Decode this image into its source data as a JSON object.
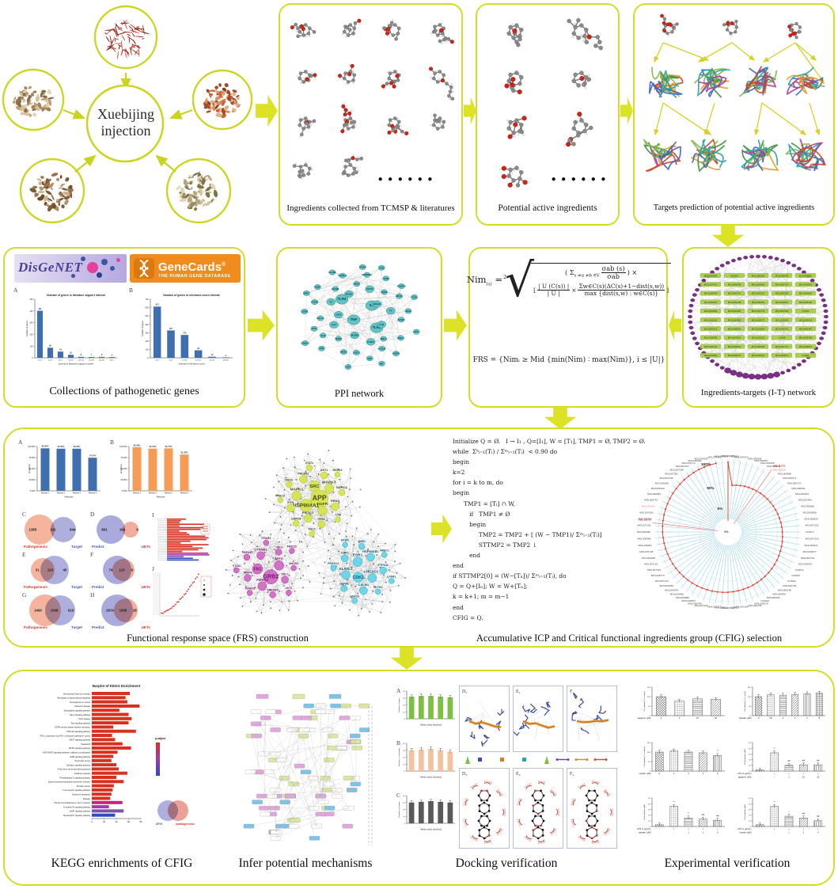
{
  "herbs": {
    "center_label_1": "Xuebijing",
    "center_label_2": "injection"
  },
  "ellipsis": "● ● ● ● ● ●",
  "captions": {
    "ingredients": "Ingredients collected from TCMSP & literatures",
    "active": "Potential active ingredients",
    "targets": "Targets prediction of potential active ingredients",
    "genes": "Collections of pathogenetic genes",
    "ppi": "PPI network",
    "it": "Ingredients-targets (I-T) network",
    "frs": "Functional response space (FRS) construction",
    "cfig": "Accumulative ICP and Critical functional ingredients group (CFIG) selection",
    "kegg": "KEGG enrichments of CFIG",
    "mech": "Infer potential mechanisms",
    "dock": "Docking verification",
    "exp": "Experimental verification"
  },
  "logos": {
    "disgenet": "DisGeNET",
    "genecards": "GeneCards",
    "genecards_reg": "®",
    "genecards_sub": "THE HUMAN GENE DATABASE"
  },
  "formula": {
    "nim": "Nim",
    "nim_sub": "(s)",
    "eq": " =",
    "root_index": "2",
    "sum_open": "( Σ",
    "sum_sub": "s ≠a ≠b ∈V",
    "f1n": "σab (s)",
    "f1d": "σab",
    "close_times": ") ×",
    "lb": "[",
    "f2n": "| U (C(s)) |",
    "f2d": "| U |",
    "times": "×",
    "f3n": "Σw∈C(s)(ΔC(s)+1−dist(s,w))",
    "f3d": "max {dist(s,w) : w∈C(s)}",
    "rb": "]",
    "frs_line": "FRS = {Nimᵢ ≥ Mid {min(Nim) ∶ max(Nim)}, i ≤ |U|}"
  },
  "algorithm": {
    "lines": [
      "Initialize Q = Ø.   I → I₁ , Q=[I₁], W = [T₁], TMP1 = Ø, TMP2 = Ø.",
      "while  Σᵏᵢ₌₁(Tᵢ) / Σᵐᵢ₌₁(Tᵢ)  < 0.90 do",
      "begin",
      "k=2",
      "for i = k to m, do",
      "begin",
      "      TMP1 = [Tᵢ] ∩ W,",
      "         if   TMP1 ≠ Ø",
      "         begin",
      "              TMP2 = TMP2 + [ (W − TMP1)/ Σᵐᵢ₌₁(Tᵢ)]",
      "              STTMP2 = TMP2 ↓",
      "         end",
      "end",
      "if STTMP2[0] = (W−[Tₙ])/ Σᵐᵢ₌₁(Tᵢ), do",
      "Q = Q+[Iₙ]; W = W+[Tₙ];",
      "k = k+1; m = m−1",
      "end",
      "CFIG = Q."
    ]
  },
  "frs_panel_letters": [
    "A",
    "B",
    "C",
    "D",
    "E",
    "F",
    "G",
    "H",
    "I",
    "J"
  ],
  "venn_data": [
    {
      "letter": "C",
      "left": "1365",
      "overlap": "241",
      "right": "844",
      "left_label": "Pathogenesis",
      "right_label": "Target"
    },
    {
      "letter": "D",
      "left": "891",
      "overlap": "164",
      "right": "9",
      "left_label": "Predict",
      "right_label": "UETs"
    },
    {
      "letter": "E",
      "left": "31",
      "overlap": "120",
      "right": "45",
      "left_label": "Pathogenesis",
      "right_label": "Target"
    },
    {
      "letter": "F",
      "left": "74",
      "overlap": "115",
      "right": "8",
      "left_label": "Predict",
      "right_label": "UETs"
    },
    {
      "letter": "G",
      "left": "1460",
      "overlap": "1098",
      "right": "619",
      "left_label": "Pathogenesis",
      "right_label": "Target"
    },
    {
      "letter": "H",
      "left": "2974",
      "overlap": "1058",
      "right": "28",
      "left_label": "Predict",
      "right_label": "UETs"
    }
  ],
  "chart_data": {
    "literature_interval": {
      "type": "bar",
      "panel": "A",
      "title": "Number of genes in literature support interval",
      "ylabel": "Number of genes",
      "xlabel": "Interval of literature support number",
      "categories": [
        "[1,2)",
        "[2,3)",
        "[3,5)",
        "[5,10)",
        "[10,15)",
        "[15,20)",
        "[20,40)",
        "[40,)"
      ],
      "values": [
        402,
        86,
        53,
        26,
        8,
        7,
        8,
        6
      ],
      "ylim": [
        0,
        500
      ],
      "color": "#3f6fae"
    },
    "relevance_interval": {
      "type": "bar",
      "panel": "B",
      "title": "Number of genes in relevance score interval",
      "ylabel": "Number of genes",
      "xlabel": "Interval of relevance score",
      "categories": [
        "[2,5)",
        "[5,7)",
        "[7,10)",
        "[10,15)",
        "[15,20)",
        "[20,30)"
      ],
      "values": [
        612,
        327,
        273,
        90,
        13,
        6
      ],
      "ylim": [
        0,
        700
      ],
      "color": "#3f6fae"
    },
    "method_proportion_a": {
      "type": "bar",
      "panel": "A",
      "ylabel": "proportion",
      "xlabel": "Methods",
      "categories": [
        "Method 1",
        "Method 2",
        "Method 3",
        "Method 4"
      ],
      "values": [
        95.82,
        95,
        95,
        74.67
      ],
      "labels": [
        "95.82%",
        "95.00%",
        "95.00%",
        "74.67%"
      ],
      "yticks": [
        "0.00%",
        "25.00%",
        "50.00%",
        "75.00%",
        "100.00%"
      ],
      "ylim": [
        0,
        100
      ],
      "color": "#3f6fae"
    },
    "method_proportion_b": {
      "type": "bar",
      "panel": "B",
      "ylabel": "proportion",
      "xlabel": "Methods",
      "categories": [
        "Method 1",
        "Method 2",
        "Method 3",
        "Method 4"
      ],
      "values": [
        98.39,
        95.12,
        95.77,
        81.92
      ],
      "labels": [
        "98.39%",
        "95.12%",
        "95.77%",
        "81.92%"
      ],
      "yticks": [
        "0.00%",
        "25.00%",
        "50.00%",
        "75.00%",
        "100.00%"
      ],
      "ylim": [
        0,
        100
      ],
      "color": "#f59d56"
    },
    "kegg_enrichment": {
      "type": "bar-horizontal",
      "title": "Barplot of KEGG Enrichment",
      "legend_title": "p.adjust",
      "xticks": [
        0,
        20,
        40,
        60,
        80
      ],
      "pathways": [
        "Non-alcoholic fatty liver disease",
        "Retrograde endocannabinoid signaling",
        "Proteoglycans in cancer",
        "Alzheimer disease",
        "Sphingolipid signaling pathway",
        "Rap1 signaling pathway",
        "Prion disease",
        "Ras signaling pathway",
        "EGFR tyrosine kinase inhibitor resistance",
        "PI3K-Akt signaling pathway",
        "PD-L1 expression and PD-1 checkpoint pathway in cancer",
        "VEGF signaling pathway",
        "Hepatitis B",
        "MAPK signaling pathway",
        "AGE-RAGE signaling pathway in diabetic complications",
        "ErbB signaling pathway",
        "Pancreatic cancer",
        "Estrogen signaling pathway",
        "Fluid shear stress and atherosclerosis",
        "Parkinson disease",
        "Phospholipase D signaling pathway",
        "Kaposi sarcoma-associated herpesvirus infection",
        "Prostate cancer",
        "T cell receptor signaling pathway",
        "Endocrine resistance",
        "Measles",
        "Human immunodeficiency virus 1 infection",
        "Fc epsilon RI signaling pathway",
        "cAMP signaling pathway",
        "Neurotrophin signaling pathway"
      ],
      "values": [
        62,
        55,
        58,
        78,
        45,
        60,
        65,
        60,
        35,
        72,
        33,
        38,
        50,
        64,
        42,
        35,
        32,
        40,
        44,
        58,
        40,
        52,
        36,
        34,
        32,
        30,
        50,
        28,
        52,
        38
      ],
      "colors": [
        "#d7301f",
        "#d7301f",
        "#d7301f",
        "#d7301f",
        "#d7301f",
        "#d7301f",
        "#d7301f",
        "#d7301f",
        "#d7301f",
        "#d7301f",
        "#d7301f",
        "#d7301f",
        "#d7301f",
        "#d7301f",
        "#d7301f",
        "#d7301f",
        "#d7301f",
        "#d7301f",
        "#d7301f",
        "#d7301f",
        "#d7301f",
        "#d7301f",
        "#d7301f",
        "#d7301f",
        "#d7301f",
        "#d7301f",
        "#c0267e",
        "#a03ab0",
        "#7b52ab",
        "#2f4bc0"
      ],
      "venn_labels": [
        "CFIG",
        "pathogenesis"
      ]
    },
    "docking_counts": [
      {
        "panel": "A",
        "ylabel": "Numbers of genes",
        "xlabel": "Affinity values (kcal/mol)",
        "values": [
          32,
          33,
          33,
          32,
          31
        ],
        "color": "#7cc043"
      },
      {
        "panel": "B",
        "ylabel": "Numbers of compounds",
        "xlabel": "Affinity values (kcal/mol)",
        "values": [
          30,
          31,
          32,
          30,
          28
        ],
        "color": "#f5c29e"
      },
      {
        "panel": "C",
        "ylabel": "Numbers of proteins",
        "xlabel": "Affinity values (kcal/mol)",
        "values": [
          30,
          31,
          32,
          31,
          30
        ],
        "color": "#5a5a5a"
      }
    ],
    "experimental": [
      {
        "ylabel": "Cell viability (% of control)",
        "xrows": [
          {
            "label": "apigenin (μM)",
            "values": [
              "0",
              "1",
              "10",
              "20"
            ]
          }
        ],
        "values": [
          100,
          76,
          88,
          85
        ],
        "ylim": [
          0,
          150
        ],
        "yticks": [
          0,
          50,
          100,
          150
        ],
        "marks": [
          "",
          "",
          "",
          ""
        ]
      },
      {
        "ylabel": "Cell viability (% of control)",
        "xrows": [
          {
            "label": "baicalin (μM)",
            "values": [
              "0",
              "0.5",
              "1",
              "2",
              "4",
              "8"
            ]
          }
        ],
        "values": [
          100,
          110,
          108,
          112,
          115,
          118
        ],
        "ylim": [
          0,
          150
        ],
        "yticks": [
          0,
          50,
          100,
          150
        ],
        "marks": [
          "",
          "",
          "",
          "",
          "",
          ""
        ]
      },
      {
        "ylabel": "Cell viability (% of control)",
        "xrows": [
          {
            "label": "luteolin (μM)",
            "values": [
              "0",
              "1",
              "2",
              "4",
              "8"
            ]
          }
        ],
        "values": [
          100,
          105,
          100,
          96,
          82
        ],
        "ylim": [
          0,
          150
        ],
        "yticks": [
          0,
          50,
          100,
          150
        ],
        "marks": [
          "",
          "",
          "",
          "",
          "**"
        ]
      },
      {
        "ylabel": "NO production (μM)",
        "xrows": [
          {
            "label": "LPS (1 μg/mL)",
            "values": [
              "-",
              "+",
              "+",
              "+",
              "+"
            ]
          },
          {
            "label": "apigenin (μM)",
            "values": [
              "-",
              "-",
              "1",
              "10",
              "20"
            ]
          }
        ],
        "values": [
          2,
          32,
          10,
          11,
          11
        ],
        "ylim": [
          0,
          50
        ],
        "yticks": [
          0,
          10,
          20,
          30,
          40,
          50
        ],
        "marks": [
          "",
          "**",
          "##",
          "##",
          "##"
        ]
      },
      {
        "ylabel": "NO production (μM)",
        "xrows": [
          {
            "label": "LPS (1 μg/mL)",
            "values": [
              "-",
              "+",
              "+",
              "+",
              "+"
            ]
          },
          {
            "label": "baicalin (μM)",
            "values": [
              "-",
              "-",
              "1",
              "2",
              "4"
            ]
          }
        ],
        "values": [
          3,
          35,
          15,
          13,
          11
        ],
        "ylim": [
          0,
          50
        ],
        "yticks": [
          0,
          10,
          20,
          30,
          40,
          50
        ],
        "marks": [
          "",
          "**",
          "**",
          "##",
          "##"
        ]
      },
      {
        "ylabel": "NO production (μM)",
        "xrows": [
          {
            "label": "LPS (1 μg/mL)",
            "values": [
              "-",
              "+",
              "+",
              "+",
              "+"
            ]
          },
          {
            "label": "luteolin (μM)",
            "values": [
              "-",
              "-",
              "1",
              "2",
              "4"
            ]
          }
        ],
        "values": [
          3,
          35,
          18,
          15,
          10
        ],
        "ylim": [
          0,
          50
        ],
        "yticks": [
          0,
          10,
          20,
          30,
          40,
          50
        ],
        "marks": [
          "",
          "**",
          "*",
          "##",
          "##"
        ]
      }
    ],
    "icp": {
      "type": "radial-line",
      "rings": [
        "0%",
        "50%",
        "100%"
      ],
      "annotations": [
        "90.83%",
        "90.16%"
      ]
    }
  },
  "networks": {
    "ppi_genes": [
      "TNF",
      "IL6",
      "TLR4",
      "TLR2",
      "CD14",
      "HMGB1",
      "MYD88",
      "NFKB1",
      "IL1B",
      "IL10",
      "STAT3",
      "CASP1",
      "F2",
      "F3",
      "NOD2",
      "NOS2",
      "MBL2",
      "CALCA",
      "KNG1",
      "CXCL2",
      "VCAM1",
      "ICAM1",
      "ALB",
      "SERPINE1",
      "PLAUR",
      "CASP8",
      "MYLK",
      "IRAK1",
      "MAPK14",
      "RELA",
      "BTK",
      "TLR9",
      "CRP",
      "ADM",
      "SELE",
      "F2R",
      "ITGB2",
      "HSPA4",
      "C5AR1",
      "FCGR2A",
      "LBP",
      "ELANE",
      "APC",
      "CD40LG",
      "FGB",
      "MIF",
      "SIRT1",
      "TLR1"
    ],
    "it_ingredients": [
      "MOL000358",
      "COM10",
      "MOL000296",
      "MOL000449",
      "MOL000422",
      "MOL007022",
      "MOL000006",
      "MOL000098",
      "MOL002714",
      "MOL000953",
      "MOL005344",
      "MOL000173",
      "MOL002157",
      "MOL004355",
      "MOL006992",
      "MOL000392",
      "MOL002135",
      "MOL000354",
      "MOL004941",
      "MOL005190",
      "MOL002883",
      "MOL000492",
      "MOL002776",
      "MOL007059",
      "COM5",
      "MOL001002",
      "MOL000359",
      "MOL005573",
      "MOL002565",
      "MOL000433",
      "MOL002372",
      "MOL005916",
      "MOL001924",
      "MOL002341",
      "MOL000787",
      "MOL005828",
      "MOL007514",
      "MOL002222",
      "COM8",
      "MOL004328",
      "MOL005100",
      "MOL002651",
      "MOL000096",
      "MOL001771",
      "MOL005043",
      "MOL002882",
      "MOL000675",
      "MOL006331",
      "MOL000874",
      "COM2"
    ],
    "frs_clusters": {
      "top": [
        "APP",
        "HSP90AA1",
        "SRC",
        "EGFR",
        "MAPK1",
        "MAPK3",
        "PIK3CG",
        "PIK3R1",
        "HRAS",
        "FYN",
        "AKT1",
        "TP53",
        "KRAS",
        "MAPK14",
        "GAPDH",
        "STAT1",
        "LYN",
        "PRKCA",
        "MAPK8",
        "RAC1"
      ],
      "left": [
        "GRB2",
        "FN1",
        "MYC",
        "YWHAZ",
        "CTNNB1",
        "SHC1",
        "TRAF6",
        "CBL",
        "CREBBP",
        "HSPA4",
        "SMAD3",
        "YWHAG",
        "VCAM1",
        "AKT2",
        "ITGA4",
        "PRKCD"
      ],
      "right": [
        "CDK2",
        "ESR1",
        "HDAC1",
        "ELAVL1",
        "HSP90AB1",
        "CALM1",
        "CDK1",
        "PTPN11",
        "HSPA8",
        "GNB1",
        "PLCG1",
        "PRKACA",
        "NR3C1",
        "HDAC3",
        "EP300",
        "LPAR1"
      ]
    },
    "icp_labels": [
      "MOL000389",
      "COM20",
      "MOL007022",
      "MOL000098",
      "MOL000087",
      "MOL007068",
      "MOL000874",
      "MOL000006",
      "MOL000696",
      "MOL007074",
      "MOL000714",
      "MOL000062",
      "MOL000223",
      "MOL001496",
      "MOL000883",
      "MOL000908",
      "MOL000839",
      "MOL007102",
      "COM17",
      "MOL007118",
      "MOL005321",
      "MOL000677",
      "MOL002712",
      "MOL005043",
      "COM14",
      "COM23",
      "COM12",
      "MOL002766",
      "MOL005199",
      "MOL004991",
      "MOL000057",
      "COM24",
      "MOL002078",
      "MOL002735",
      "MOL007154",
      "COM11",
      "MOL007100",
      "MOL005111",
      "MOL007127",
      "MOL007129",
      "MOL000749",
      "MOL006403",
      "MOL006990",
      "MOL002688",
      "MOL004678",
      "MOL007086",
      "MOL007134",
      "MOL000773",
      "MOL007145",
      "MOL007152",
      "MOL002948",
      "MOL007148",
      "MOL004893",
      "MOL000484",
      "MOL006495",
      "MOL007130",
      "MOL002706",
      "MOL007093",
      "MOL005190",
      "MOL000742",
      "MOL000881",
      "MOL001942",
      "MOL000358",
      "MOL007135",
      "MOL007081",
      "MOL007048",
      "MOL007107",
      "MOL002773",
      "MOL000492",
      "MOL007084",
      "MOL007003",
      "MOL000953"
    ],
    "icp_red_labels": [
      "MOL000006",
      "MOL005190"
    ]
  },
  "dock": {
    "letters": [
      "A",
      "B",
      "C"
    ],
    "cells": [
      "D₁",
      "E₁",
      "F₁",
      "D₂",
      "E₂",
      "F₂"
    ]
  }
}
